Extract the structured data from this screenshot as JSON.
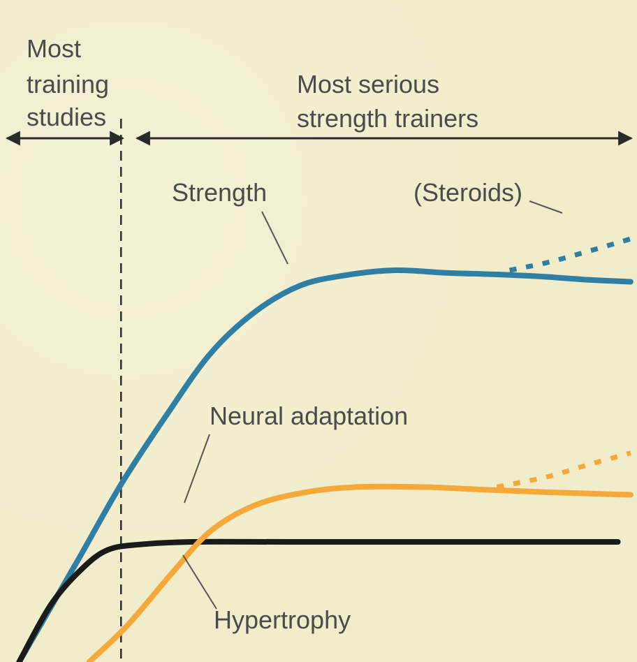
{
  "chart_data": {
    "type": "line",
    "title": "",
    "xlabel": "",
    "ylabel": "",
    "xlim": [
      0,
      100
    ],
    "ylim": [
      0,
      100
    ],
    "grid": false,
    "regions": [
      {
        "lines": [
          "Most",
          "training",
          "studies"
        ]
      },
      {
        "lines": [
          "Most serious",
          "strength trainers"
        ]
      }
    ],
    "boundary_x": 19,
    "series": [
      {
        "name": "Strength",
        "color": "#2e7fa3",
        "style": "solid",
        "points": [
          [
            3,
            0
          ],
          [
            12,
            19
          ],
          [
            19,
            34
          ],
          [
            26,
            47
          ],
          [
            33,
            59
          ],
          [
            40,
            67
          ],
          [
            47,
            72
          ],
          [
            54,
            74
          ],
          [
            62,
            75
          ],
          [
            70,
            74.5
          ],
          [
            78,
            74.2
          ],
          [
            85,
            73.8
          ],
          [
            92,
            73.2
          ],
          [
            99,
            72.8
          ]
        ]
      },
      {
        "name": "(Steroids)",
        "color": "#2e7fa3",
        "style": "dotted",
        "points": [
          [
            80,
            75
          ],
          [
            86,
            76.5
          ],
          [
            92,
            78.5
          ],
          [
            99,
            81
          ]
        ]
      },
      {
        "name": "Neural adaptation",
        "color": "#1a1a1a",
        "style": "solid",
        "points": [
          [
            3,
            0
          ],
          [
            8,
            11
          ],
          [
            13,
            18
          ],
          [
            17,
            21.5
          ],
          [
            22,
            22.5
          ],
          [
            30,
            23
          ],
          [
            45,
            23
          ],
          [
            65,
            23
          ],
          [
            80,
            23
          ],
          [
            97,
            23
          ]
        ]
      },
      {
        "name": "Hypertrophy",
        "color": "#f5a93a",
        "style": "solid",
        "points": [
          [
            14,
            0
          ],
          [
            20,
            7
          ],
          [
            27,
            17
          ],
          [
            33,
            25
          ],
          [
            40,
            30
          ],
          [
            48,
            32.5
          ],
          [
            56,
            33.5
          ],
          [
            66,
            33.5
          ],
          [
            76,
            33
          ],
          [
            86,
            32.5
          ],
          [
            99,
            32
          ]
        ]
      },
      {
        "name": "",
        "color": "#f5a93a",
        "style": "dotted",
        "points": [
          [
            78,
            33.5
          ],
          [
            86,
            35.5
          ],
          [
            93,
            38
          ],
          [
            99,
            40
          ]
        ]
      }
    ],
    "annotations": [
      {
        "text": "Strength"
      },
      {
        "text": "(Steroids)"
      },
      {
        "text": "Neural adaptation"
      },
      {
        "text": "Hypertrophy"
      }
    ]
  }
}
